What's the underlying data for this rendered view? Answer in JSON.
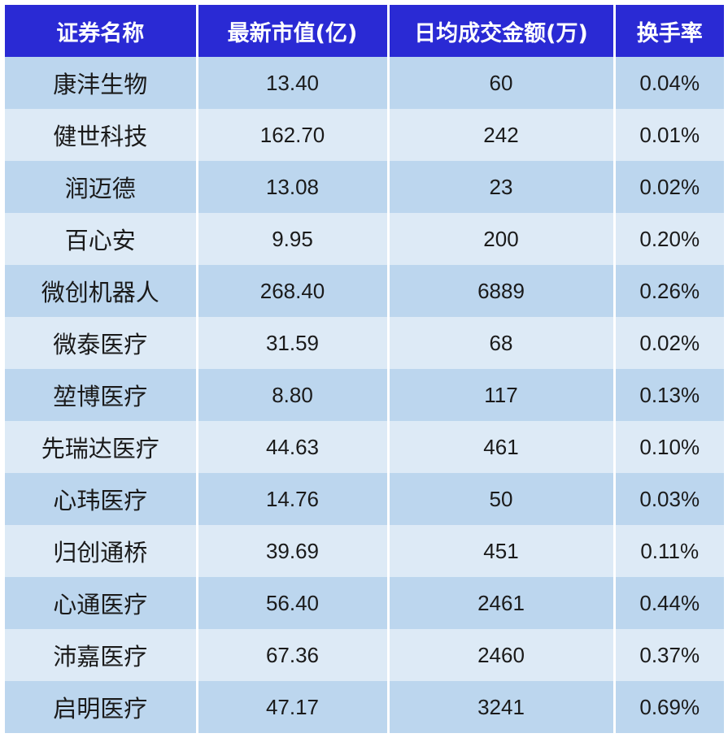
{
  "header": {
    "name": "证券名称",
    "market_cap": "最新市值(亿)",
    "avg_volume": "日均成交金额(万)",
    "turnover": "换手率"
  },
  "rows": [
    {
      "name": "康沣生物",
      "market_cap": "13.40",
      "avg_volume": "60",
      "turnover": "0.04%"
    },
    {
      "name": "健世科技",
      "market_cap": "162.70",
      "avg_volume": "242",
      "turnover": "0.01%"
    },
    {
      "name": "润迈德",
      "market_cap": "13.08",
      "avg_volume": "23",
      "turnover": "0.02%"
    },
    {
      "name": "百心安",
      "market_cap": "9.95",
      "avg_volume": "200",
      "turnover": "0.20%"
    },
    {
      "name": "微创机器人",
      "market_cap": "268.40",
      "avg_volume": "6889",
      "turnover": "0.26%"
    },
    {
      "name": "微泰医疗",
      "market_cap": "31.59",
      "avg_volume": "68",
      "turnover": "0.02%"
    },
    {
      "name": "堃博医疗",
      "market_cap": "8.80",
      "avg_volume": "117",
      "turnover": "0.13%"
    },
    {
      "name": "先瑞达医疗",
      "market_cap": "44.63",
      "avg_volume": "461",
      "turnover": "0.10%"
    },
    {
      "name": "心玮医疗",
      "market_cap": "14.76",
      "avg_volume": "50",
      "turnover": "0.03%"
    },
    {
      "name": "归创通桥",
      "market_cap": "39.69",
      "avg_volume": "451",
      "turnover": "0.11%"
    },
    {
      "name": "心通医疗",
      "market_cap": "56.40",
      "avg_volume": "2461",
      "turnover": "0.44%"
    },
    {
      "name": "沛嘉医疗",
      "market_cap": "67.36",
      "avg_volume": "2460",
      "turnover": "0.37%"
    },
    {
      "name": "启明医疗",
      "market_cap": "47.17",
      "avg_volume": "3241",
      "turnover": "0.69%"
    }
  ],
  "colors": {
    "header_bg": "#2a2ad4",
    "header_text": "#ffffff",
    "row_dark": "#bcd6ee",
    "row_light": "#ddeaf6",
    "cell_text": "#1a1a1a"
  }
}
